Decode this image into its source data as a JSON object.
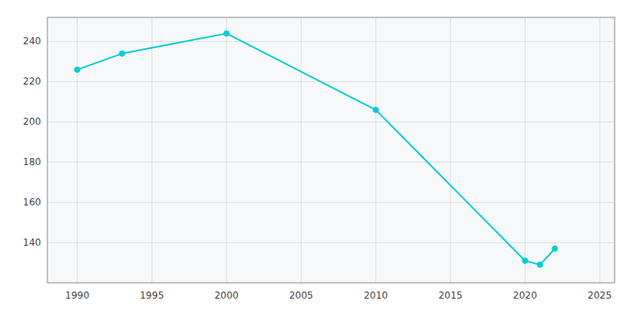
{
  "chart_data": {
    "type": "line",
    "x": [
      1990,
      1993,
      2000,
      2010,
      2020,
      2021,
      2022
    ],
    "values": [
      226,
      234,
      244,
      206,
      131,
      129,
      137
    ],
    "color": "#00CED1",
    "marker": "circle",
    "xlim": [
      1988,
      2026
    ],
    "ylim": [
      120,
      252
    ],
    "xticks": [
      1990,
      1995,
      2000,
      2005,
      2010,
      2015,
      2020,
      2025
    ],
    "yticks": [
      140,
      160,
      180,
      200,
      220,
      240
    ],
    "grid": true
  }
}
